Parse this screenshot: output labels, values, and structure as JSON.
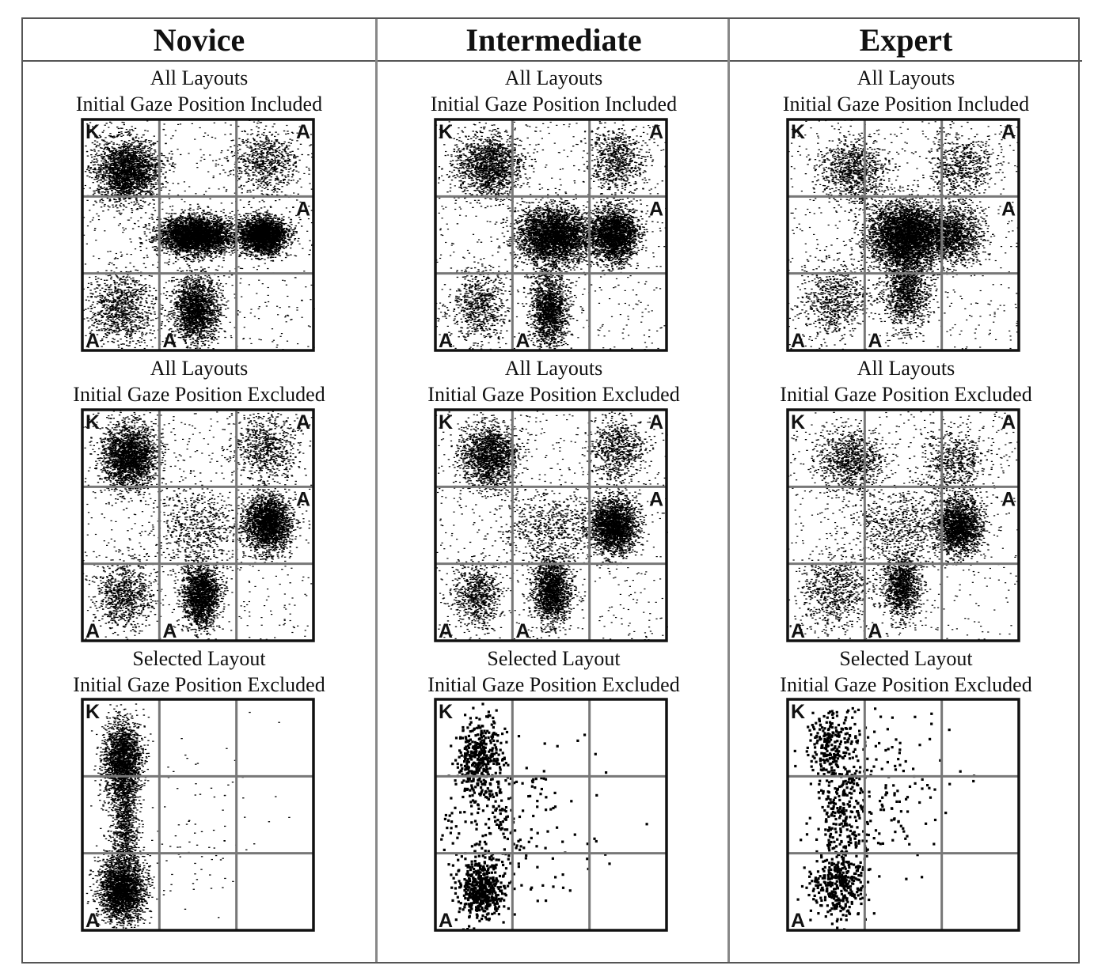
{
  "chart_data": {
    "type": "scatter",
    "columns": [
      {
        "title": "Novice",
        "panels": [
          {
            "caption1": "All Layouts",
            "caption2": "Initial Gaze Position Included",
            "corner_labels": [
              {
                "cell": [
                  0,
                  0
                ],
                "pos": "top-left",
                "text": "K"
              },
              {
                "cell": [
                  2,
                  0
                ],
                "pos": "top-right",
                "text": "A"
              },
              {
                "cell": [
                  2,
                  1
                ],
                "pos": "top-right",
                "text": "A"
              },
              {
                "cell": [
                  0,
                  2
                ],
                "pos": "bottom-left",
                "text": "A"
              },
              {
                "cell": [
                  1,
                  2
                ],
                "pos": "bottom-left",
                "text": "A"
              }
            ],
            "clusters": [
              {
                "x": 0.19,
                "y": 0.22,
                "sx": 0.07,
                "sy": 0.07,
                "w": 2.0
              },
              {
                "x": 0.49,
                "y": 0.5,
                "sx": 0.08,
                "sy": 0.04,
                "w": 3.0
              },
              {
                "x": 0.78,
                "y": 0.5,
                "sx": 0.05,
                "sy": 0.04,
                "w": 2.2
              },
              {
                "x": 0.49,
                "y": 0.82,
                "sx": 0.05,
                "sy": 0.07,
                "w": 1.6
              },
              {
                "x": 0.16,
                "y": 0.82,
                "sx": 0.07,
                "sy": 0.08,
                "w": 0.8
              },
              {
                "x": 0.79,
                "y": 0.18,
                "sx": 0.07,
                "sy": 0.07,
                "w": 0.6
              }
            ]
          },
          {
            "caption1": "All Layouts",
            "caption2": "Initial Gaze Position Excluded",
            "corner_labels": [
              {
                "cell": [
                  0,
                  0
                ],
                "pos": "top-left",
                "text": "K"
              },
              {
                "cell": [
                  2,
                  0
                ],
                "pos": "top-right",
                "text": "A"
              },
              {
                "cell": [
                  2,
                  1
                ],
                "pos": "top-right",
                "text": "A"
              },
              {
                "cell": [
                  0,
                  2
                ],
                "pos": "bottom-left",
                "text": "A"
              },
              {
                "cell": [
                  1,
                  2
                ],
                "pos": "bottom-left",
                "text": "A"
              }
            ],
            "clusters": [
              {
                "x": 0.2,
                "y": 0.2,
                "sx": 0.06,
                "sy": 0.07,
                "w": 1.9
              },
              {
                "x": 0.8,
                "y": 0.49,
                "sx": 0.05,
                "sy": 0.06,
                "w": 1.9
              },
              {
                "x": 0.51,
                "y": 0.8,
                "sx": 0.04,
                "sy": 0.07,
                "w": 1.5
              },
              {
                "x": 0.18,
                "y": 0.8,
                "sx": 0.06,
                "sy": 0.07,
                "w": 0.7
              },
              {
                "x": 0.79,
                "y": 0.16,
                "sx": 0.07,
                "sy": 0.07,
                "w": 0.6
              },
              {
                "x": 0.5,
                "y": 0.5,
                "sx": 0.1,
                "sy": 0.08,
                "w": 0.5
              }
            ]
          },
          {
            "caption1": "Selected Layout",
            "caption2": "Initial Gaze Position Excluded",
            "corner_labels": [
              {
                "cell": [
                  0,
                  0
                ],
                "pos": "top-left",
                "text": "K"
              },
              {
                "cell": [
                  0,
                  2
                ],
                "pos": "bottom-left",
                "text": "A"
              }
            ],
            "clusters": [
              {
                "x": 0.17,
                "y": 0.27,
                "sx": 0.04,
                "sy": 0.09,
                "w": 2.0
              },
              {
                "x": 0.17,
                "y": 0.82,
                "sx": 0.05,
                "sy": 0.07,
                "w": 2.3
              },
              {
                "x": 0.18,
                "y": 0.55,
                "sx": 0.03,
                "sy": 0.1,
                "w": 0.7
              },
              {
                "x": 0.5,
                "y": 0.55,
                "sx": 0.15,
                "sy": 0.2,
                "w": 0.08
              }
            ]
          }
        ]
      },
      {
        "title": "Intermediate",
        "panels": [
          {
            "caption1": "All Layouts",
            "caption2": "Initial Gaze Position Included",
            "corner_labels": [
              {
                "cell": [
                  0,
                  0
                ],
                "pos": "top-left",
                "text": "K"
              },
              {
                "cell": [
                  2,
                  0
                ],
                "pos": "top-right",
                "text": "A"
              },
              {
                "cell": [
                  2,
                  1
                ],
                "pos": "top-right",
                "text": "A"
              },
              {
                "cell": [
                  0,
                  2
                ],
                "pos": "bottom-left",
                "text": "A"
              },
              {
                "cell": [
                  1,
                  2
                ],
                "pos": "bottom-left",
                "text": "A"
              }
            ],
            "clusters": [
              {
                "x": 0.23,
                "y": 0.2,
                "sx": 0.07,
                "sy": 0.07,
                "w": 1.3
              },
              {
                "x": 0.51,
                "y": 0.5,
                "sx": 0.08,
                "sy": 0.06,
                "w": 2.8
              },
              {
                "x": 0.77,
                "y": 0.5,
                "sx": 0.05,
                "sy": 0.06,
                "w": 1.9
              },
              {
                "x": 0.49,
                "y": 0.82,
                "sx": 0.04,
                "sy": 0.08,
                "w": 1.3
              },
              {
                "x": 0.19,
                "y": 0.8,
                "sx": 0.06,
                "sy": 0.08,
                "w": 0.6
              },
              {
                "x": 0.78,
                "y": 0.18,
                "sx": 0.06,
                "sy": 0.07,
                "w": 0.6
              }
            ]
          },
          {
            "caption1": "All Layouts",
            "caption2": "Initial Gaze Position Excluded",
            "corner_labels": [
              {
                "cell": [
                  0,
                  0
                ],
                "pos": "top-left",
                "text": "K"
              },
              {
                "cell": [
                  2,
                  0
                ],
                "pos": "top-right",
                "text": "A"
              },
              {
                "cell": [
                  2,
                  1
                ],
                "pos": "top-right",
                "text": "A"
              },
              {
                "cell": [
                  0,
                  2
                ],
                "pos": "bottom-left",
                "text": "A"
              },
              {
                "cell": [
                  1,
                  2
                ],
                "pos": "bottom-left",
                "text": "A"
              }
            ],
            "clusters": [
              {
                "x": 0.23,
                "y": 0.2,
                "sx": 0.06,
                "sy": 0.07,
                "w": 1.4
              },
              {
                "x": 0.77,
                "y": 0.5,
                "sx": 0.05,
                "sy": 0.06,
                "w": 1.8
              },
              {
                "x": 0.5,
                "y": 0.78,
                "sx": 0.04,
                "sy": 0.07,
                "w": 1.4
              },
              {
                "x": 0.18,
                "y": 0.8,
                "sx": 0.05,
                "sy": 0.07,
                "w": 0.6
              },
              {
                "x": 0.78,
                "y": 0.17,
                "sx": 0.06,
                "sy": 0.07,
                "w": 0.6
              },
              {
                "x": 0.5,
                "y": 0.5,
                "sx": 0.12,
                "sy": 0.08,
                "w": 0.6
              }
            ]
          },
          {
            "caption1": "Selected Layout",
            "caption2": "Initial Gaze Position Excluded",
            "corner_labels": [
              {
                "cell": [
                  0,
                  0
                ],
                "pos": "top-left",
                "text": "K"
              },
              {
                "cell": [
                  0,
                  2
                ],
                "pos": "bottom-left",
                "text": "A"
              }
            ],
            "clusters": [
              {
                "x": 0.19,
                "y": 0.25,
                "sx": 0.05,
                "sy": 0.08,
                "w": 0.9
              },
              {
                "x": 0.19,
                "y": 0.82,
                "sx": 0.05,
                "sy": 0.06,
                "w": 1.1
              },
              {
                "x": 0.25,
                "y": 0.55,
                "sx": 0.12,
                "sy": 0.15,
                "w": 0.5
              },
              {
                "x": 0.5,
                "y": 0.55,
                "sx": 0.15,
                "sy": 0.2,
                "w": 0.12
              }
            ]
          }
        ]
      },
      {
        "title": "Expert",
        "panels": [
          {
            "caption1": "All Layouts",
            "caption2": "Initial Gaze Position Included",
            "corner_labels": [
              {
                "cell": [
                  0,
                  0
                ],
                "pos": "top-left",
                "text": "K"
              },
              {
                "cell": [
                  2,
                  0
                ],
                "pos": "top-right",
                "text": "A"
              },
              {
                "cell": [
                  2,
                  1
                ],
                "pos": "top-right",
                "text": "A"
              },
              {
                "cell": [
                  0,
                  2
                ],
                "pos": "bottom-left",
                "text": "A"
              },
              {
                "cell": [
                  1,
                  2
                ],
                "pos": "bottom-left",
                "text": "A"
              }
            ],
            "clusters": [
              {
                "x": 0.51,
                "y": 0.5,
                "sx": 0.08,
                "sy": 0.07,
                "w": 3.4
              },
              {
                "x": 0.72,
                "y": 0.5,
                "sx": 0.06,
                "sy": 0.06,
                "w": 1.0
              },
              {
                "x": 0.51,
                "y": 0.74,
                "sx": 0.05,
                "sy": 0.08,
                "w": 1.0
              },
              {
                "x": 0.28,
                "y": 0.22,
                "sx": 0.07,
                "sy": 0.07,
                "w": 0.8
              },
              {
                "x": 0.2,
                "y": 0.78,
                "sx": 0.07,
                "sy": 0.08,
                "w": 0.6
              },
              {
                "x": 0.75,
                "y": 0.2,
                "sx": 0.07,
                "sy": 0.07,
                "w": 0.5
              }
            ]
          },
          {
            "caption1": "All Layouts",
            "caption2": "Initial Gaze Position Excluded",
            "corner_labels": [
              {
                "cell": [
                  0,
                  0
                ],
                "pos": "top-left",
                "text": "K"
              },
              {
                "cell": [
                  2,
                  0
                ],
                "pos": "top-right",
                "text": "A"
              },
              {
                "cell": [
                  2,
                  1
                ],
                "pos": "top-right",
                "text": "A"
              },
              {
                "cell": [
                  0,
                  2
                ],
                "pos": "bottom-left",
                "text": "A"
              },
              {
                "cell": [
                  1,
                  2
                ],
                "pos": "bottom-left",
                "text": "A"
              }
            ],
            "clusters": [
              {
                "x": 0.74,
                "y": 0.5,
                "sx": 0.05,
                "sy": 0.06,
                "w": 1.5
              },
              {
                "x": 0.49,
                "y": 0.76,
                "sx": 0.04,
                "sy": 0.07,
                "w": 1.0
              },
              {
                "x": 0.27,
                "y": 0.22,
                "sx": 0.07,
                "sy": 0.07,
                "w": 0.8
              },
              {
                "x": 0.2,
                "y": 0.78,
                "sx": 0.07,
                "sy": 0.08,
                "w": 0.6
              },
              {
                "x": 0.72,
                "y": 0.22,
                "sx": 0.07,
                "sy": 0.07,
                "w": 0.5
              },
              {
                "x": 0.5,
                "y": 0.5,
                "sx": 0.12,
                "sy": 0.08,
                "w": 0.6
              }
            ]
          },
          {
            "caption1": "Selected Layout",
            "caption2": "Initial Gaze Position Excluded",
            "corner_labels": [
              {
                "cell": [
                  0,
                  0
                ],
                "pos": "top-left",
                "text": "K"
              },
              {
                "cell": [
                  0,
                  2
                ],
                "pos": "bottom-left",
                "text": "A"
              }
            ],
            "clusters": [
              {
                "x": 0.22,
                "y": 0.8,
                "sx": 0.06,
                "sy": 0.07,
                "w": 0.7
              },
              {
                "x": 0.23,
                "y": 0.45,
                "sx": 0.06,
                "sy": 0.2,
                "w": 0.9
              },
              {
                "x": 0.18,
                "y": 0.2,
                "sx": 0.05,
                "sy": 0.07,
                "w": 0.4
              },
              {
                "x": 0.4,
                "y": 0.4,
                "sx": 0.12,
                "sy": 0.15,
                "w": 0.25
              },
              {
                "x": 0.55,
                "y": 0.35,
                "sx": 0.12,
                "sy": 0.2,
                "w": 0.08
              }
            ]
          }
        ]
      }
    ]
  }
}
